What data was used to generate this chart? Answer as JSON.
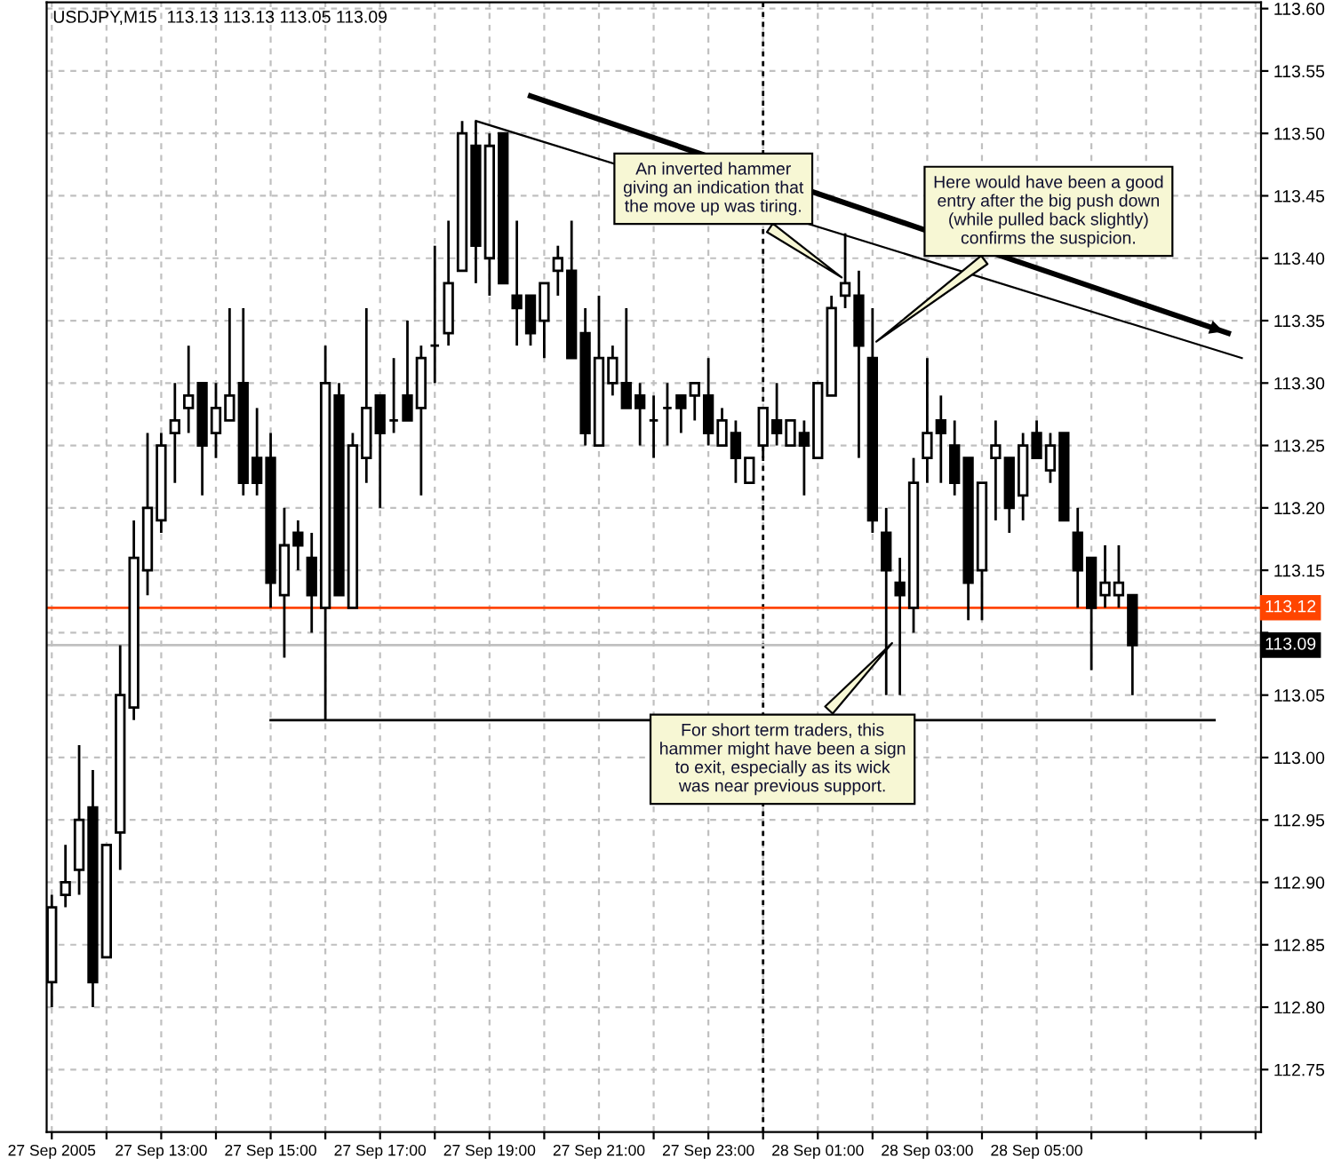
{
  "chart_data": {
    "type": "candlestick",
    "title": "USDJPY,M15  113.13 113.13 113.05 113.09",
    "categories": [
      "27 Sep 2005",
      null,
      null,
      null,
      null,
      null,
      null,
      null,
      "27 Sep 13:00",
      null,
      null,
      null,
      null,
      null,
      null,
      null,
      "27 Sep 15:00",
      null,
      null,
      null,
      null,
      null,
      null,
      null,
      "27 Sep 17:00",
      null,
      null,
      null,
      null,
      null,
      null,
      null,
      "27 Sep 19:00",
      null,
      null,
      null,
      null,
      null,
      null,
      null,
      "27 Sep 21:00",
      null,
      null,
      null,
      null,
      null,
      null,
      null,
      "27 Sep 23:00",
      null,
      null,
      null,
      null,
      null,
      null,
      null,
      "28 Sep 01:00",
      null,
      null,
      null,
      null,
      null,
      null,
      null,
      "28 Sep 03:00",
      null,
      null,
      null,
      null,
      null,
      null,
      null,
      "28 Sep 05:00",
      null,
      null,
      null,
      null,
      null,
      null,
      null,
      null,
      null,
      null,
      null,
      null,
      null,
      null,
      null,
      null
    ],
    "ohlc": [
      [
        112.82,
        112.89,
        112.8,
        112.88
      ],
      [
        112.89,
        112.93,
        112.88,
        112.9
      ],
      [
        112.91,
        113.01,
        112.89,
        112.95
      ],
      [
        112.96,
        112.99,
        112.8,
        112.82
      ],
      [
        112.84,
        112.93,
        112.84,
        112.93
      ],
      [
        112.94,
        113.09,
        112.91,
        113.05
      ],
      [
        113.04,
        113.19,
        113.03,
        113.16
      ],
      [
        113.15,
        113.26,
        113.13,
        113.2
      ],
      [
        113.19,
        113.26,
        113.18,
        113.25
      ],
      [
        113.26,
        113.3,
        113.22,
        113.27
      ],
      [
        113.28,
        113.33,
        113.26,
        113.29
      ],
      [
        113.3,
        113.3,
        113.21,
        113.25
      ],
      [
        113.26,
        113.3,
        113.24,
        113.28
      ],
      [
        113.27,
        113.36,
        113.27,
        113.29
      ],
      [
        113.3,
        113.36,
        113.21,
        113.22
      ],
      [
        113.24,
        113.28,
        113.21,
        113.22
      ],
      [
        113.24,
        113.26,
        113.12,
        113.14
      ],
      [
        113.13,
        113.2,
        113.08,
        113.17
      ],
      [
        113.18,
        113.19,
        113.15,
        113.17
      ],
      [
        113.16,
        113.18,
        113.1,
        113.13
      ],
      [
        113.12,
        113.33,
        113.03,
        113.3
      ],
      [
        113.29,
        113.3,
        113.13,
        113.13
      ],
      [
        113.12,
        113.26,
        113.12,
        113.25
      ],
      [
        113.24,
        113.36,
        113.22,
        113.28
      ],
      [
        113.29,
        113.29,
        113.2,
        113.26
      ],
      [
        113.27,
        113.32,
        113.26,
        113.27
      ],
      [
        113.29,
        113.35,
        113.27,
        113.27
      ],
      [
        113.28,
        113.33,
        113.21,
        113.32
      ],
      [
        113.33,
        113.41,
        113.3,
        113.33
      ],
      [
        113.34,
        113.43,
        113.33,
        113.38
      ],
      [
        113.39,
        113.51,
        113.39,
        113.5
      ],
      [
        113.49,
        113.51,
        113.38,
        113.41
      ],
      [
        113.4,
        113.5,
        113.37,
        113.49
      ],
      [
        113.5,
        113.5,
        113.38,
        113.38
      ],
      [
        113.37,
        113.43,
        113.33,
        113.36
      ],
      [
        113.37,
        113.37,
        113.33,
        113.34
      ],
      [
        113.35,
        113.38,
        113.32,
        113.38
      ],
      [
        113.39,
        113.41,
        113.37,
        113.4
      ],
      [
        113.39,
        113.43,
        113.32,
        113.32
      ],
      [
        113.34,
        113.36,
        113.25,
        113.26
      ],
      [
        113.25,
        113.37,
        113.25,
        113.32
      ],
      [
        113.3,
        113.33,
        113.29,
        113.32
      ],
      [
        113.3,
        113.36,
        113.28,
        113.28
      ],
      [
        113.29,
        113.3,
        113.25,
        113.28
      ],
      [
        113.27,
        113.29,
        113.24,
        113.27
      ],
      [
        113.28,
        113.3,
        113.25,
        113.28
      ],
      [
        113.29,
        113.29,
        113.26,
        113.28
      ],
      [
        113.29,
        113.3,
        113.27,
        113.3
      ],
      [
        113.29,
        113.32,
        113.25,
        113.26
      ],
      [
        113.25,
        113.28,
        113.25,
        113.27
      ],
      [
        113.26,
        113.27,
        113.22,
        113.24
      ],
      [
        113.22,
        113.24,
        113.22,
        113.24
      ],
      [
        113.25,
        113.28,
        113.24,
        113.28
      ],
      [
        113.27,
        113.3,
        113.25,
        113.26
      ],
      [
        113.25,
        113.27,
        113.25,
        113.27
      ],
      [
        113.26,
        113.27,
        113.21,
        113.25
      ],
      [
        113.24,
        113.3,
        113.24,
        113.3
      ],
      [
        113.29,
        113.37,
        113.29,
        113.36
      ],
      [
        113.37,
        113.42,
        113.36,
        113.38
      ],
      [
        113.37,
        113.39,
        113.24,
        113.33
      ],
      [
        113.32,
        113.36,
        113.18,
        113.19
      ],
      [
        113.18,
        113.2,
        113.05,
        113.15
      ],
      [
        113.14,
        113.16,
        113.05,
        113.13
      ],
      [
        113.12,
        113.24,
        113.1,
        113.22
      ],
      [
        113.24,
        113.32,
        113.22,
        113.26
      ],
      [
        113.27,
        113.29,
        113.22,
        113.26
      ],
      [
        113.25,
        113.27,
        113.21,
        113.22
      ],
      [
        113.24,
        113.24,
        113.11,
        113.14
      ],
      [
        113.15,
        113.22,
        113.11,
        113.22
      ],
      [
        113.24,
        113.27,
        113.19,
        113.25
      ],
      [
        113.24,
        113.24,
        113.18,
        113.2
      ],
      [
        113.21,
        113.26,
        113.19,
        113.25
      ],
      [
        113.26,
        113.27,
        113.24,
        113.24
      ],
      [
        113.23,
        113.26,
        113.22,
        113.25
      ],
      [
        113.26,
        113.26,
        113.19,
        113.19
      ],
      [
        113.18,
        113.2,
        113.12,
        113.15
      ],
      [
        113.16,
        113.16,
        113.07,
        113.12
      ],
      [
        113.13,
        113.17,
        113.12,
        113.14
      ],
      [
        113.13,
        113.17,
        113.12,
        113.14
      ],
      [
        113.13,
        113.13,
        113.05,
        113.09
      ],
      null,
      null,
      null,
      null,
      null,
      null,
      null,
      null,
      null
    ],
    "series": [
      {
        "type": "line",
        "color": "#000000",
        "values": [
          null,
          null,
          null,
          null,
          null,
          null,
          null,
          null,
          null,
          null,
          null,
          null,
          null,
          null,
          null,
          null,
          113.03,
          null,
          null,
          null,
          null,
          null,
          null,
          null,
          null,
          null,
          null,
          null,
          null,
          null,
          null,
          null,
          null,
          null,
          null,
          null,
          null,
          null,
          null,
          null,
          null,
          null,
          null,
          null,
          null,
          null,
          null,
          null,
          null,
          null,
          null,
          null,
          null,
          null,
          null,
          null,
          null,
          null,
          null,
          null,
          null,
          null,
          null,
          null,
          null,
          null,
          null,
          null,
          null,
          null,
          null,
          null,
          null,
          null,
          null,
          null,
          null,
          null,
          null,
          null,
          null,
          null,
          null,
          null,
          null,
          113.03,
          null,
          null,
          null
        ]
      },
      {
        "type": "line",
        "color": "#000000",
        "values": [
          null,
          null,
          null,
          null,
          null,
          null,
          null,
          null,
          null,
          null,
          null,
          null,
          null,
          null,
          null,
          null,
          null,
          null,
          null,
          null,
          null,
          null,
          null,
          null,
          null,
          null,
          null,
          null,
          null,
          null,
          null,
          113.51,
          null,
          null,
          null,
          null,
          null,
          null,
          null,
          null,
          null,
          null,
          null,
          null,
          null,
          null,
          null,
          null,
          null,
          null,
          null,
          null,
          null,
          null,
          null,
          null,
          null,
          null,
          null,
          null,
          null,
          null,
          null,
          null,
          null,
          null,
          null,
          null,
          null,
          null,
          null,
          null,
          null,
          null,
          null,
          null,
          null,
          null,
          null,
          null,
          null,
          null,
          null,
          null,
          null,
          null,
          null,
          113.32,
          null
        ]
      },
      {
        "type": "line",
        "color": "#000000",
        "values": [
          null,
          null,
          null,
          null,
          null,
          null,
          null,
          null,
          null,
          null,
          null,
          null,
          null,
          null,
          null,
          null,
          null,
          null,
          null,
          null,
          null,
          null,
          null,
          null,
          null,
          null,
          null,
          null,
          null,
          null,
          null,
          null,
          null,
          null,
          null,
          113.53,
          null,
          null,
          null,
          null,
          null,
          null,
          null,
          null,
          null,
          null,
          null,
          null,
          null,
          null,
          null,
          null,
          null,
          null,
          null,
          null,
          null,
          null,
          null,
          null,
          null,
          null,
          null,
          null,
          null,
          null,
          null,
          null,
          null,
          null,
          null,
          null,
          null,
          null,
          null,
          null,
          null,
          null,
          null,
          null,
          null,
          null,
          null,
          null,
          null,
          null,
          113.34,
          null,
          null
        ]
      }
    ],
    "ylim": [
      112.7,
      113.605
    ],
    "yticks": [
      {
        "value": 112.75,
        "label": "112.75"
      },
      {
        "value": 112.8,
        "label": "112.80"
      },
      {
        "value": 112.85,
        "label": "112.85"
      },
      {
        "value": 112.9,
        "label": "112.90"
      },
      {
        "value": 112.95,
        "label": "112.95"
      },
      {
        "value": 113.0,
        "label": "113.00"
      },
      {
        "value": 113.05,
        "label": "113.05"
      },
      {
        "value": 113.1,
        "label": null
      },
      {
        "value": 113.15,
        "label": "113.15"
      },
      {
        "value": 113.2,
        "label": "113.20"
      },
      {
        "value": 113.25,
        "label": "113.25"
      },
      {
        "value": 113.3,
        "label": "113.30"
      },
      {
        "value": 113.35,
        "label": "113.35"
      },
      {
        "value": 113.4,
        "label": "113.40"
      },
      {
        "value": 113.45,
        "label": "113.45"
      },
      {
        "value": 113.5,
        "label": "113.50"
      },
      {
        "value": 113.55,
        "label": "113.55"
      },
      {
        "value": 113.6,
        "label": "113.60"
      }
    ],
    "grid": true,
    "ref_lines": [
      {
        "axis": "y",
        "value": 113.12,
        "label": "113.12",
        "color": "#ff4500",
        "line_style": "solid"
      },
      {
        "axis": "y",
        "value": 113.09,
        "label": "113.09",
        "color": "#c0c0c0",
        "line_style": "solid"
      }
    ],
    "annotations": [
      "An inverted hammer\ngiving an indication that\nthe move up was tiring.",
      "Here would have been a good\nentry after the big push down\n(while pulled back slightly)\nconfirms the suspicion.",
      "For short term traders, this\nhammer might have been a sign\nto exit, especially as its wick\nwas near previous support."
    ]
  }
}
